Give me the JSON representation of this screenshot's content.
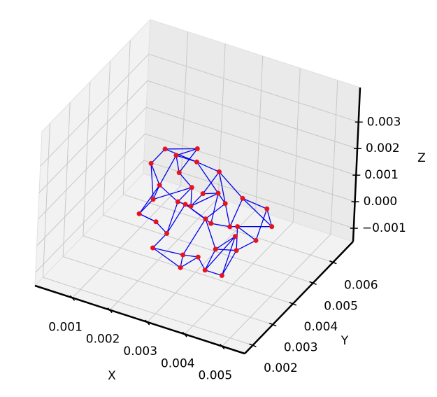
{
  "chart_data": {
    "type": "network3d",
    "x_label": "X",
    "y_label": "Y",
    "z_label": "Z",
    "node_color": "#e8141d",
    "edge_color": "#0000ee",
    "xlim": [
      0.0,
      0.0056
    ],
    "ylim": [
      0.0016,
      0.007
    ],
    "zlim": [
      -0.0015,
      0.0043
    ],
    "xticks": [
      0.001,
      0.002,
      0.003,
      0.004,
      0.005
    ],
    "yticks": [
      0.002,
      0.003,
      0.004,
      0.005,
      0.006
    ],
    "zticks": [
      {
        "value": -0.001,
        "label": "−0.001"
      },
      {
        "value": 0,
        "label": "0.000"
      },
      0.001,
      0.002,
      0.003
    ],
    "grid": true,
    "x": [
      0.0021,
      0.0025,
      0.0019,
      0.003,
      0.0034,
      0.0027,
      0.0016,
      0.0023,
      0.0031,
      0.0038,
      0.0042,
      0.0036,
      0.0029,
      0.0024,
      0.0018,
      0.0033,
      0.004,
      0.0045,
      0.0026,
      0.0022,
      0.0035,
      0.0028,
      0.0015,
      0.0032,
      0.0039,
      0.002,
      0.0027,
      0.0037,
      0.0043,
      0.003,
      0.0024,
      0.0034,
      0.0017,
      0.0041,
      0.0029,
      0.0036
    ],
    "y": [
      0.0045,
      0.0048,
      0.0041,
      0.005,
      0.0046,
      0.0039,
      0.0037,
      0.0043,
      0.0042,
      0.0047,
      0.0052,
      0.0038,
      0.0035,
      0.0036,
      0.004,
      0.0044,
      0.0041,
      0.0049,
      0.0046,
      0.0033,
      0.0035,
      0.004,
      0.0044,
      0.0037,
      0.0036,
      0.0038,
      0.0042,
      0.0043,
      0.0045,
      0.0032,
      0.0041,
      0.0039,
      0.0047,
      0.0039,
      0.0044,
      0.0048
    ],
    "z": [
      0.0021,
      0.0018,
      0.0012,
      0.0015,
      0.0008,
      0.001,
      0.0003,
      0.0006,
      0.0004,
      0.0011,
      0.0005,
      -0.0002,
      -0.0005,
      0.0,
      0.0007,
      0.0013,
      -0.0003,
      0.0002,
      0.0025,
      -0.0004,
      -0.0008,
      0.0009,
      0.0016,
      -0.0006,
      -0.0009,
      0.0001,
      0.0014,
      0.0003,
      -0.0001,
      -0.0007,
      0.0019,
      0.0006,
      0.002,
      0.0008,
      0.0011,
      -0.0005
    ],
    "edges": [
      [
        0,
        1
      ],
      [
        0,
        2
      ],
      [
        0,
        18
      ],
      [
        1,
        3
      ],
      [
        1,
        15
      ],
      [
        2,
        6
      ],
      [
        2,
        7
      ],
      [
        2,
        22
      ],
      [
        3,
        4
      ],
      [
        3,
        9
      ],
      [
        4,
        8
      ],
      [
        4,
        15
      ],
      [
        5,
        7
      ],
      [
        5,
        8
      ],
      [
        5,
        13
      ],
      [
        6,
        14
      ],
      [
        6,
        25
      ],
      [
        7,
        13
      ],
      [
        7,
        21
      ],
      [
        8,
        11
      ],
      [
        8,
        12
      ],
      [
        9,
        10
      ],
      [
        9,
        17
      ],
      [
        10,
        17
      ],
      [
        10,
        28
      ],
      [
        11,
        16
      ],
      [
        11,
        20
      ],
      [
        12,
        19
      ],
      [
        12,
        23
      ],
      [
        13,
        19
      ],
      [
        13,
        25
      ],
      [
        14,
        22
      ],
      [
        14,
        26
      ],
      [
        15,
        21
      ],
      [
        15,
        31
      ],
      [
        16,
        24
      ],
      [
        16,
        28
      ],
      [
        17,
        33
      ],
      [
        18,
        30
      ],
      [
        18,
        32
      ],
      [
        19,
        29
      ],
      [
        20,
        23
      ],
      [
        20,
        24
      ],
      [
        21,
        26
      ],
      [
        22,
        32
      ],
      [
        23,
        29
      ],
      [
        24,
        35
      ],
      [
        25,
        6
      ],
      [
        26,
        30
      ],
      [
        27,
        9
      ],
      [
        27,
        31
      ],
      [
        27,
        33
      ],
      [
        28,
        33
      ],
      [
        29,
        12
      ],
      [
        30,
        0
      ],
      [
        31,
        5
      ],
      [
        32,
        1
      ],
      [
        33,
        16
      ],
      [
        34,
        15
      ],
      [
        34,
        21
      ],
      [
        35,
        11
      ],
      [
        35,
        20
      ],
      [
        3,
        34
      ],
      [
        4,
        27
      ],
      [
        7,
        26
      ],
      [
        14,
        2
      ]
    ]
  }
}
